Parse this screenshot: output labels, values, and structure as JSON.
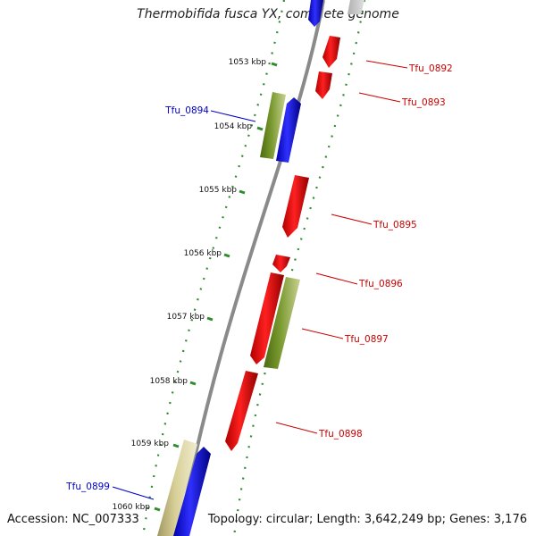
{
  "title": "Thermobifida fusca YX, complete genome",
  "accession": "Accession: NC_007333",
  "summary": "Topology: circular; Length: 3,642,249 bp; Genes: 3,176",
  "colors": {
    "forward_cds": "#0000ff",
    "reverse_cds": "#ff0000",
    "olive_feature": "#6b8e23",
    "khaki_feature": "#c8c080",
    "tick": "#2e8b2e",
    "backbone": "#888888",
    "label_red": "#cc0000",
    "label_blue": "#0000cc"
  },
  "scale_ticks": [
    {
      "label": "1053 kbp"
    },
    {
      "label": "1054 kbp"
    },
    {
      "label": "1055 kbp"
    },
    {
      "label": "1056 kbp"
    },
    {
      "label": "1057 kbp"
    },
    {
      "label": "1058 kbp"
    },
    {
      "label": "1059 kbp"
    },
    {
      "label": "1060 kbp"
    }
  ],
  "gene_labels": [
    {
      "id": "Tfu_0892",
      "color": "red"
    },
    {
      "id": "Tfu_0893",
      "color": "red"
    },
    {
      "id": "Tfu_0894",
      "color": "blue"
    },
    {
      "id": "Tfu_0895",
      "color": "red"
    },
    {
      "id": "Tfu_0896",
      "color": "red"
    },
    {
      "id": "Tfu_0897",
      "color": "red"
    },
    {
      "id": "Tfu_0898",
      "color": "red"
    },
    {
      "id": "Tfu_0899",
      "color": "blue"
    }
  ]
}
